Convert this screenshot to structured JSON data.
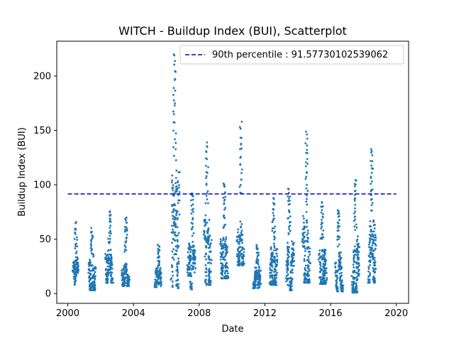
{
  "chart_data": {
    "type": "scatter",
    "title": "WITCH - Buildup Index (BUI), Scatterplot",
    "xlabel": "Date",
    "ylabel": "Buildup Index (BUI)",
    "xlim": [
      "1999-05-01",
      "2020-10-01"
    ],
    "ylim": [
      -9,
      232
    ],
    "x_ticks": [
      "2000",
      "2004",
      "2008",
      "2012",
      "2016",
      "2020"
    ],
    "y_ticks": [
      0,
      50,
      100,
      150,
      200
    ],
    "grid": false,
    "legend_position": "upper right",
    "point_color": "#1f77b4",
    "reference_line": {
      "label": "90th percentile : 91.57730102539062",
      "value": 91.57730102539062,
      "x_range": [
        "2000-01-01",
        "2020-01-01"
      ],
      "color": "#0000cc",
      "style": "dashed"
    },
    "seasons": [
      {
        "start": "2000-05-01",
        "end": "2000-08-15",
        "min": 8,
        "max": 67,
        "peak": 66
      },
      {
        "start": "2001-04-20",
        "end": "2001-08-30",
        "min": 3,
        "max": 61,
        "peak": 60
      },
      {
        "start": "2002-05-01",
        "end": "2002-09-20",
        "min": 10,
        "max": 79,
        "peak": 78
      },
      {
        "start": "2003-05-01",
        "end": "2003-09-25",
        "min": 7,
        "max": 71,
        "peak": 70
      },
      {
        "start": "2005-05-01",
        "end": "2005-09-01",
        "min": 6,
        "max": 49,
        "peak": 45
      },
      {
        "start": "2006-05-01",
        "end": "2006-10-10",
        "min": 5,
        "max": 224,
        "peak": 224
      },
      {
        "start": "2007-05-01",
        "end": "2007-09-20",
        "min": 4,
        "max": 94,
        "peak": 94
      },
      {
        "start": "2008-05-01",
        "end": "2008-09-15",
        "min": 8,
        "max": 141,
        "peak": 141
      },
      {
        "start": "2009-05-01",
        "end": "2009-09-20",
        "min": 14,
        "max": 104,
        "peak": 104
      },
      {
        "start": "2010-05-01",
        "end": "2010-09-15",
        "min": 26,
        "max": 158,
        "peak": 158
      },
      {
        "start": "2011-05-01",
        "end": "2011-09-25",
        "min": 5,
        "max": 45,
        "peak": 45
      },
      {
        "start": "2012-05-01",
        "end": "2012-09-25",
        "min": 8,
        "max": 88,
        "peak": 88
      },
      {
        "start": "2013-05-01",
        "end": "2013-09-25",
        "min": 3,
        "max": 97,
        "peak": 97
      },
      {
        "start": "2014-05-01",
        "end": "2014-09-20",
        "min": 10,
        "max": 150,
        "peak": 150
      },
      {
        "start": "2015-05-01",
        "end": "2015-09-25",
        "min": 9,
        "max": 85,
        "peak": 85
      },
      {
        "start": "2016-05-01",
        "end": "2016-09-25",
        "min": 2,
        "max": 78,
        "peak": 78
      },
      {
        "start": "2017-05-01",
        "end": "2017-09-25",
        "min": 1,
        "max": 107,
        "peak": 107
      },
      {
        "start": "2018-05-01",
        "end": "2018-09-25",
        "min": 10,
        "max": 136,
        "peak": 136
      }
    ]
  }
}
